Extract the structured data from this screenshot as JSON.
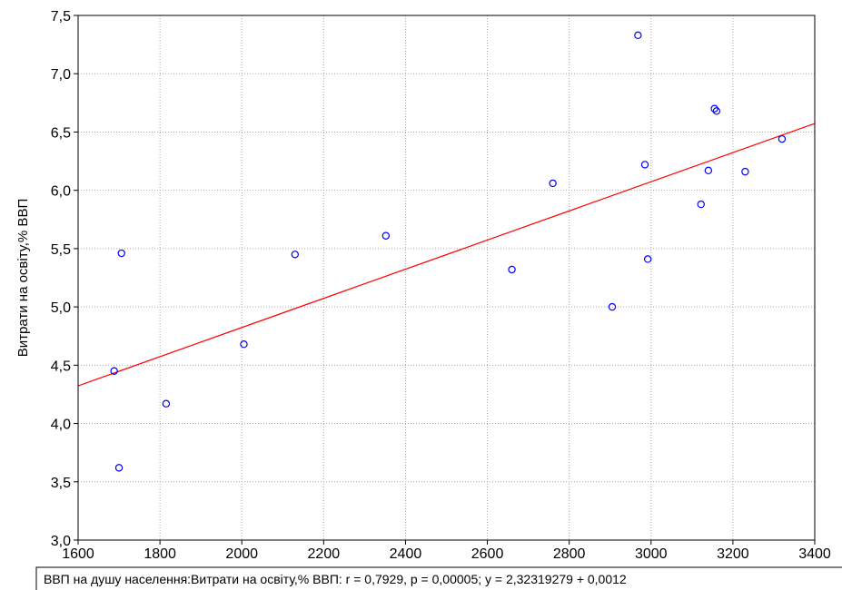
{
  "chart_data": {
    "type": "scatter",
    "title": "",
    "xlabel": "",
    "ylabel": "Витрати на освіту,% ВВП",
    "xlim": [
      1600,
      3400
    ],
    "ylim": [
      3.0,
      7.5
    ],
    "x_ticks": [
      1600,
      1800,
      2000,
      2200,
      2400,
      2600,
      2800,
      3000,
      3200,
      3400
    ],
    "y_ticks": [
      3.0,
      3.5,
      4.0,
      4.5,
      5.0,
      5.5,
      6.0,
      6.5,
      7.0,
      7.5
    ],
    "x_tick_labels": [
      "1600",
      "1800",
      "2000",
      "2200",
      "2400",
      "2600",
      "2800",
      "3000",
      "3200",
      "3400"
    ],
    "y_tick_labels": [
      "3,0",
      "3,5",
      "4,0",
      "4,5",
      "5,0",
      "5,5",
      "6,0",
      "6,5",
      "7,0",
      "7,5"
    ],
    "grid": true,
    "points": [
      {
        "x": 1688,
        "y": 4.45
      },
      {
        "x": 1700,
        "y": 3.62
      },
      {
        "x": 1706,
        "y": 5.46
      },
      {
        "x": 1815,
        "y": 4.17
      },
      {
        "x": 2005,
        "y": 4.68
      },
      {
        "x": 2130,
        "y": 5.45
      },
      {
        "x": 2352,
        "y": 5.61
      },
      {
        "x": 2660,
        "y": 5.32
      },
      {
        "x": 2760,
        "y": 6.06
      },
      {
        "x": 2905,
        "y": 5.0
      },
      {
        "x": 2968,
        "y": 7.33
      },
      {
        "x": 2985,
        "y": 6.22
      },
      {
        "x": 2992,
        "y": 5.41
      },
      {
        "x": 3122,
        "y": 5.88
      },
      {
        "x": 3140,
        "y": 6.17
      },
      {
        "x": 3155,
        "y": 6.7
      },
      {
        "x": 3160,
        "y": 6.68
      },
      {
        "x": 3230,
        "y": 6.16
      },
      {
        "x": 3320,
        "y": 6.44
      }
    ],
    "fit_line": {
      "intercept": 2.32319279,
      "slope": 0.00125,
      "x_from": 1600,
      "x_to": 3400
    },
    "caption": "ВВП на душу населення:Витрати на освіту,% ВВП:   r = 0,7929, p = 0,00005;  y = 2,32319279 + 0,0012",
    "colors": {
      "points": "#0000ff",
      "fit_line": "#ff0000",
      "grid": "#a8a8a8",
      "frame": "#000000"
    }
  }
}
